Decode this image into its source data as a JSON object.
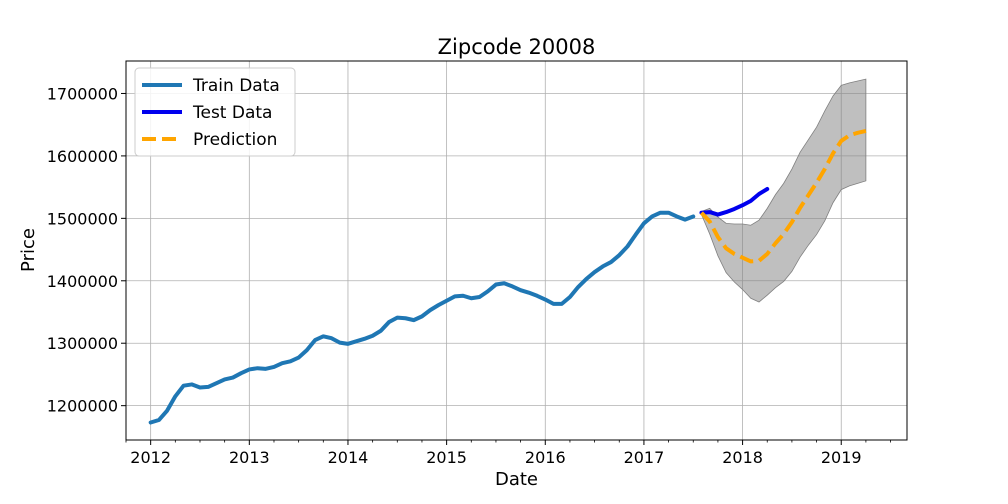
{
  "chart_data": {
    "type": "line",
    "title": "Zipcode 20008",
    "xlabel": "Date",
    "ylabel": "Price",
    "xlim": [
      "2011-10",
      "2019-09"
    ],
    "ylim": [
      1145000,
      1752000
    ],
    "x_ticks": [
      "2012",
      "2013",
      "2014",
      "2015",
      "2016",
      "2017",
      "2018",
      "2019"
    ],
    "y_ticks": [
      1200000,
      1300000,
      1400000,
      1500000,
      1600000,
      1700000
    ],
    "grid": true,
    "legend_position": "top-left",
    "series": [
      {
        "name": "Train Data",
        "color": "#1f77b4",
        "style": "solid",
        "x": [
          "2012-01",
          "2012-02",
          "2012-03",
          "2012-04",
          "2012-05",
          "2012-06",
          "2012-07",
          "2012-08",
          "2012-09",
          "2012-10",
          "2012-11",
          "2012-12",
          "2013-01",
          "2013-02",
          "2013-03",
          "2013-04",
          "2013-05",
          "2013-06",
          "2013-07",
          "2013-08",
          "2013-09",
          "2013-10",
          "2013-11",
          "2013-12",
          "2014-01",
          "2014-02",
          "2014-03",
          "2014-04",
          "2014-05",
          "2014-06",
          "2014-07",
          "2014-08",
          "2014-09",
          "2014-10",
          "2014-11",
          "2014-12",
          "2015-01",
          "2015-02",
          "2015-03",
          "2015-04",
          "2015-05",
          "2015-06",
          "2015-07",
          "2015-08",
          "2015-09",
          "2015-10",
          "2015-11",
          "2015-12",
          "2016-01",
          "2016-02",
          "2016-03",
          "2016-04",
          "2016-05",
          "2016-06",
          "2016-07",
          "2016-08",
          "2016-09",
          "2016-10",
          "2016-11",
          "2016-12",
          "2017-01",
          "2017-02",
          "2017-03",
          "2017-04",
          "2017-05",
          "2017-06",
          "2017-07"
        ],
        "values": [
          1173000,
          1177000,
          1192000,
          1215000,
          1232000,
          1234000,
          1229000,
          1230000,
          1236000,
          1242000,
          1245000,
          1252000,
          1258000,
          1260000,
          1259000,
          1262000,
          1268000,
          1271000,
          1277000,
          1289000,
          1305000,
          1311000,
          1308000,
          1301000,
          1299000,
          1303000,
          1307000,
          1312000,
          1320000,
          1334000,
          1341000,
          1340000,
          1337000,
          1343000,
          1353000,
          1361000,
          1368000,
          1375000,
          1376000,
          1372000,
          1374000,
          1383000,
          1394000,
          1396000,
          1391000,
          1385000,
          1381000,
          1376000,
          1370000,
          1363000,
          1363000,
          1374000,
          1390000,
          1403000,
          1414000,
          1423000,
          1430000,
          1441000,
          1455000,
          1474000,
          1492000,
          1503000,
          1509000,
          1509000,
          1503000,
          1498000,
          1503000
        ]
      },
      {
        "name": "Test Data",
        "color": "#0000ee",
        "style": "solid",
        "x": [
          "2017-08",
          "2017-09",
          "2017-10",
          "2017-11",
          "2017-12",
          "2018-01",
          "2018-02",
          "2018-03",
          "2018-04"
        ],
        "values": [
          1509000,
          1510000,
          1506000,
          1510000,
          1515000,
          1521000,
          1528000,
          1539000,
          1547000
        ]
      },
      {
        "name": "Prediction",
        "color": "#ffa500",
        "style": "dashed",
        "x": [
          "2017-08",
          "2017-09",
          "2017-10",
          "2017-11",
          "2017-12",
          "2018-01",
          "2018-02",
          "2018-03",
          "2018-04",
          "2018-05",
          "2018-06",
          "2018-07",
          "2018-08",
          "2018-09",
          "2018-10",
          "2018-11",
          "2018-12",
          "2019-01",
          "2019-02",
          "2019-03",
          "2019-04"
        ],
        "values": [
          1509000,
          1495000,
          1470000,
          1452000,
          1443000,
          1437000,
          1431000,
          1432000,
          1443000,
          1460000,
          1475000,
          1494000,
          1517000,
          1537000,
          1557000,
          1579000,
          1604000,
          1624000,
          1633000,
          1637000,
          1640000
        ]
      }
    ],
    "confidence_band": {
      "color": "#808080",
      "x": [
        "2017-08",
        "2017-09",
        "2017-10",
        "2017-11",
        "2017-12",
        "2018-01",
        "2018-02",
        "2018-03",
        "2018-04",
        "2018-05",
        "2018-06",
        "2018-07",
        "2018-08",
        "2018-09",
        "2018-10",
        "2018-11",
        "2018-12",
        "2019-01",
        "2019-02",
        "2019-03",
        "2019-04"
      ],
      "upper": [
        1511000,
        1516000,
        1502000,
        1492000,
        1491000,
        1491000,
        1489000,
        1497000,
        1516000,
        1538000,
        1556000,
        1579000,
        1606000,
        1626000,
        1646000,
        1672000,
        1696000,
        1713000,
        1717000,
        1720000,
        1723000
      ],
      "lower": [
        1506000,
        1475000,
        1440000,
        1413000,
        1398000,
        1386000,
        1372000,
        1366000,
        1377000,
        1389000,
        1399000,
        1415000,
        1438000,
        1457000,
        1474000,
        1496000,
        1525000,
        1546000,
        1552000,
        1556000,
        1560000
      ]
    }
  }
}
